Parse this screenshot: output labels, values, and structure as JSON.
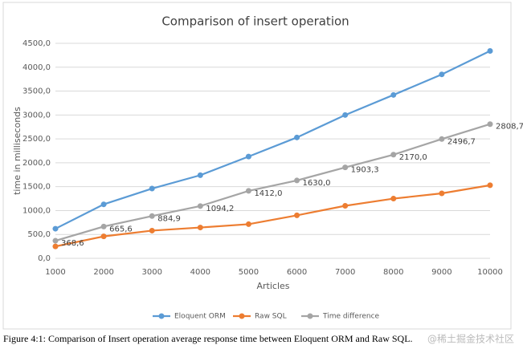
{
  "chart_data": {
    "type": "line",
    "title": "Comparison of insert operation",
    "x_label": "Articles",
    "y_label": "time in milliseconds",
    "categories": [
      "1000",
      "2000",
      "3000",
      "4000",
      "5000",
      "6000",
      "7000",
      "8000",
      "9000",
      "10000"
    ],
    "series": [
      {
        "name": "Eloquent ORM",
        "color": "#5b9bd5",
        "values": [
          620,
          1130,
          1460,
          1740,
          2130,
          2530,
          3000,
          3420,
          3850,
          4340
        ]
      },
      {
        "name": "Raw SQL",
        "color": "#ed7d31",
        "values": [
          250,
          460,
          580,
          645,
          715,
          900,
          1100,
          1250,
          1360,
          1530
        ]
      },
      {
        "name": "Time difference",
        "color": "#a5a5a5",
        "values": [
          368.6,
          665.6,
          884.9,
          1094.2,
          1412.0,
          1630.0,
          1903.3,
          2170.0,
          2496.7,
          2808.7
        ],
        "value_labels": [
          "368,6",
          "665,6",
          "884,9",
          "1094,2",
          "1412,0",
          "1630,0",
          "1903,3",
          "2170,0",
          "2496,7",
          "2808,7"
        ]
      }
    ],
    "ylim": [
      0,
      4500
    ],
    "yticks": [
      {
        "value": 0,
        "label": "0,0"
      },
      {
        "value": 500,
        "label": "500,0"
      },
      {
        "value": 1000,
        "label": "1000,0"
      },
      {
        "value": 1500,
        "label": "1500,0"
      },
      {
        "value": 2000,
        "label": "2000,0"
      },
      {
        "value": 2500,
        "label": "2500,0"
      },
      {
        "value": 3000,
        "label": "3000,0"
      },
      {
        "value": 3500,
        "label": "3500,0"
      },
      {
        "value": 4000,
        "label": "4000,0"
      },
      {
        "value": 4500,
        "label": "4500,0"
      }
    ],
    "grid": true,
    "legend": "bottom",
    "caption": "Figure 4:1: Comparison of Insert operation average response time between Eloquent ORM and Raw SQL.",
    "watermark": "@稀土掘金技术社区"
  }
}
